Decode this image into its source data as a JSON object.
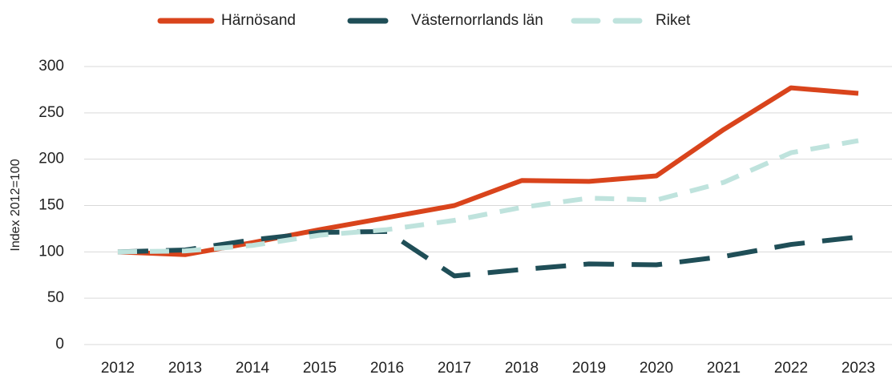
{
  "chart_data": {
    "type": "line",
    "y_label": "Index 2012=100",
    "categories": [
      "2012",
      "2013",
      "2014",
      "2015",
      "2016",
      "2017",
      "2018",
      "2019",
      "2020",
      "2021",
      "2022",
      "2023"
    ],
    "series": [
      {
        "name": "Härnösand",
        "color": "#d9441c",
        "linestyle": "solid",
        "values": [
          100,
          97,
          110,
          124,
          137,
          150,
          177,
          176,
          182,
          232,
          277,
          271
        ]
      },
      {
        "name": "Västernorrlands län",
        "color": "#1f4e57",
        "linestyle": "dashed",
        "values": [
          100,
          102,
          113,
          121,
          122,
          74,
          81,
          87,
          86,
          95,
          108,
          116
        ]
      },
      {
        "name": "Riket",
        "color": "#bfe3dd",
        "linestyle": "dashed",
        "values": [
          100,
          101,
          107,
          118,
          124,
          134,
          148,
          158,
          156,
          175,
          207,
          220
        ]
      }
    ],
    "ylim": [
      0,
      300
    ],
    "yticks": [
      0,
      50,
      100,
      150,
      200,
      250,
      300
    ],
    "grid": true,
    "legend": "top"
  }
}
